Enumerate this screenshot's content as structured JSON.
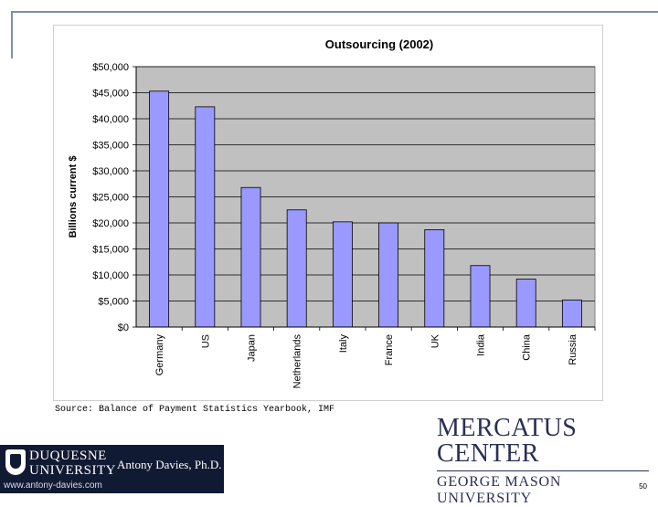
{
  "slide": {
    "source": "Source: Balance of Payment Statistics Yearbook, IMF",
    "mercatus_name": "MERCATUS CENTER",
    "mercatus_sub": "GEORGE MASON UNIVERSITY",
    "duquesne_line1": "DUQUESNE",
    "duquesne_line2": "UNIVERSITY",
    "author": "Antony Davies, Ph.D.",
    "url": "www.antony-davies.com",
    "page_number": "50"
  },
  "colors": {
    "bar": "#9999ff",
    "plot_bg": "#c0c0c0",
    "frame": "#7f8fa6",
    "mercatus": "#2a2f55",
    "duquesne_bg": "#111a33"
  },
  "chart_data": {
    "type": "bar",
    "title": "Outsourcing (2002)",
    "ylabel": "Billions current $",
    "xlabel": "",
    "categories": [
      "Germany",
      "US",
      "Japan",
      "Netherlands",
      "Italy",
      "France",
      "UK",
      "India",
      "China",
      "Russia"
    ],
    "values": [
      45300,
      42300,
      26800,
      22500,
      20200,
      20000,
      18700,
      11800,
      9200,
      5200
    ],
    "ylim": [
      0,
      50000
    ],
    "yticks": [
      0,
      5000,
      10000,
      15000,
      20000,
      25000,
      30000,
      35000,
      40000,
      45000,
      50000
    ],
    "ytick_labels": [
      "$0",
      "$5,000",
      "$10,000",
      "$15,000",
      "$20,000",
      "$25,000",
      "$30,000",
      "$35,000",
      "$40,000",
      "$45,000",
      "$50,000"
    ],
    "grid": true,
    "legend": "none"
  }
}
